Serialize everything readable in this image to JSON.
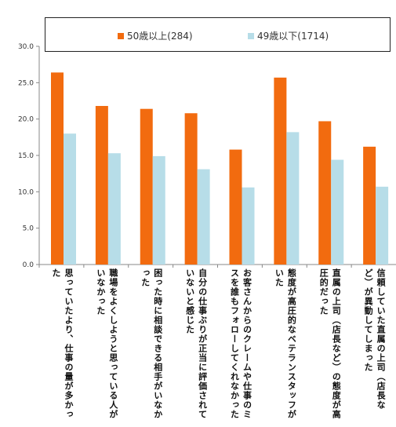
{
  "chart_data": {
    "type": "bar",
    "categories": [
      "思っていたより、仕事の量が多かった",
      "職場をよくしようと思っている人がいなかった",
      "困った時に相談できる相手がいなかった",
      "自分の仕事ぶりが正当に評価されていないと感じた",
      "お客さんからのクレームや仕事のミスを誰もフォローしてくれなかった",
      "態度が高圧的なベテランスタッフがいた",
      "直属の上司（店長など）の態度が高圧的だった",
      "信頼していた直属の上司（店長など）が異動してしまった"
    ],
    "series": [
      {
        "name": "50歳以上(284)",
        "color": "#f26b0f",
        "values": [
          26.4,
          21.8,
          21.4,
          20.8,
          15.8,
          25.7,
          19.7,
          16.2
        ]
      },
      {
        "name": "49歳以下(1714)",
        "color": "#b7dde8",
        "values": [
          18.0,
          15.3,
          14.9,
          13.1,
          10.6,
          18.2,
          14.4,
          10.7
        ]
      }
    ],
    "yticks": [
      "0.0",
      "5.0",
      "10.0",
      "15.0",
      "20.0",
      "25.0",
      "30.0"
    ],
    "ylim": [
      0,
      30
    ],
    "grid": false,
    "legend_position": "top"
  }
}
